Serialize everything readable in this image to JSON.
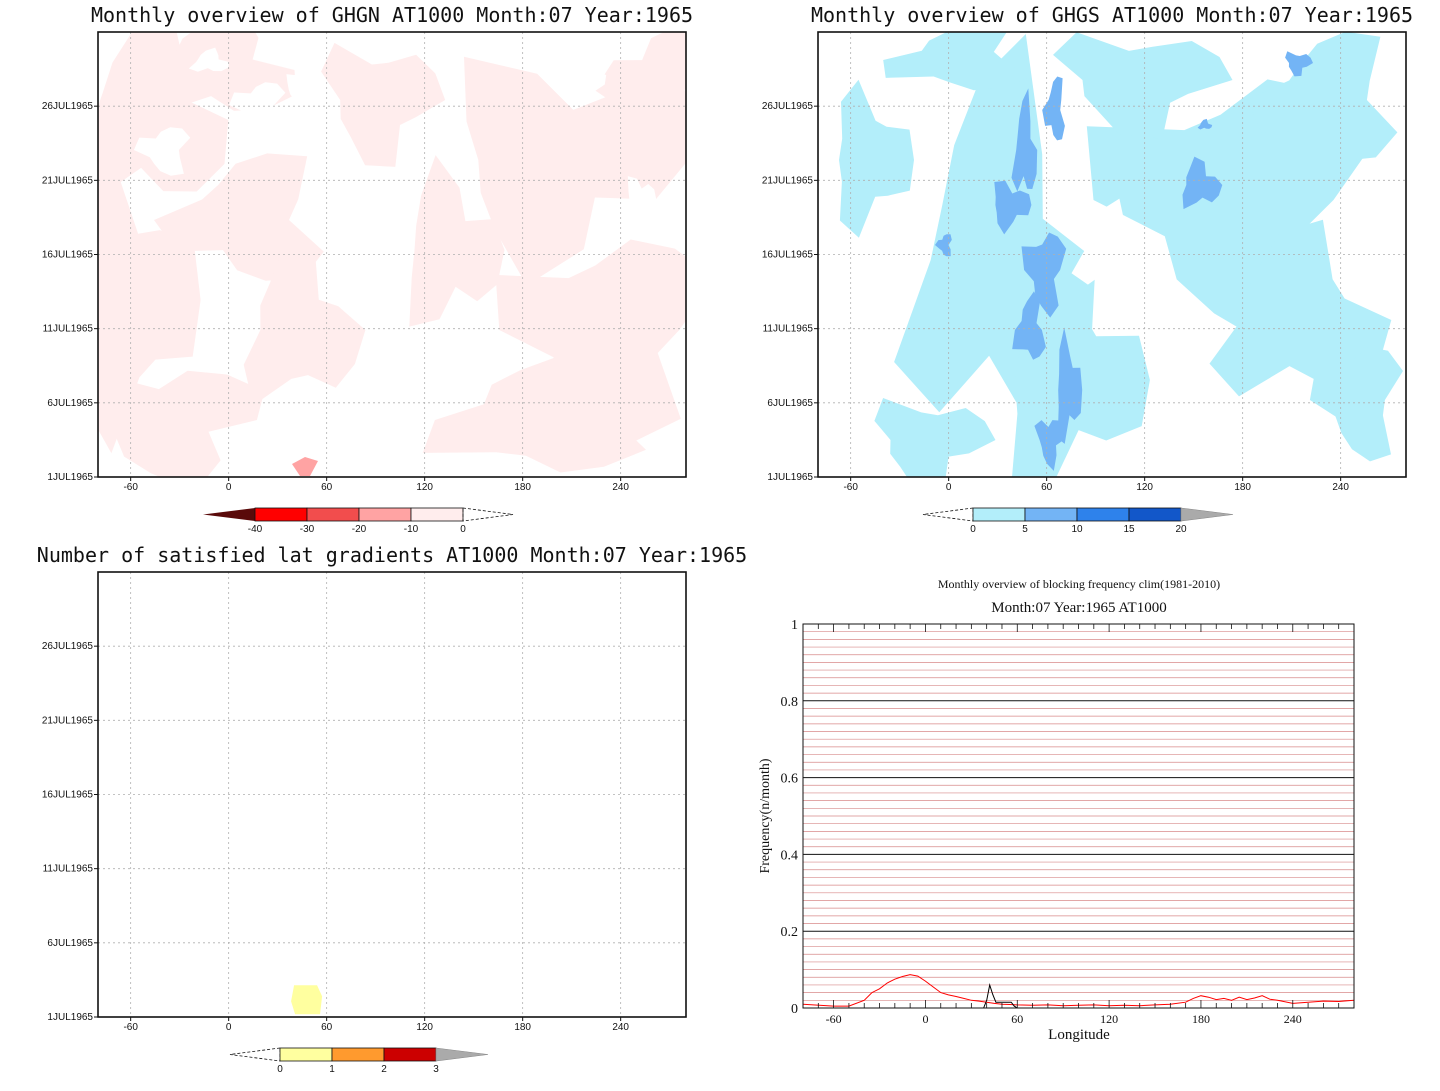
{
  "chart_data": [
    {
      "type": "heatmap",
      "title": "Monthly overview of GHGN AT1000 Month:07 Year:1965",
      "x_ticks": [
        "-60",
        "0",
        "60",
        "120",
        "180",
        "240"
      ],
      "x_tick_values": [
        -60,
        0,
        60,
        120,
        180,
        240
      ],
      "xlim": [
        -80,
        280
      ],
      "y_ticks": [
        "1JUL1965",
        "6JUL1965",
        "11JUL1965",
        "16JUL1965",
        "21JUL1965",
        "26JUL1965"
      ],
      "y_tick_values": [
        1,
        6,
        11,
        16,
        21,
        26
      ],
      "ylim": [
        1,
        31
      ],
      "grid": true,
      "colorbar": {
        "labels": [
          "-40",
          "-30",
          "-20",
          "-10",
          "0"
        ],
        "colors": [
          "#5a0a0a",
          "#ff0000",
          "#f24d4d",
          "#ffa3a3",
          "#ffeded"
        ],
        "placement": "bottom"
      },
      "shaded_color": "#ffeded"
    },
    {
      "type": "heatmap",
      "title": "Monthly overview of GHGS AT1000 Month:07 Year:1965",
      "x_ticks": [
        "-60",
        "0",
        "60",
        "120",
        "180",
        "240"
      ],
      "x_tick_values": [
        -60,
        0,
        60,
        120,
        180,
        240
      ],
      "xlim": [
        -80,
        280
      ],
      "y_ticks": [
        "1JUL1965",
        "6JUL1965",
        "11JUL1965",
        "16JUL1965",
        "21JUL1965",
        "26JUL1965"
      ],
      "y_tick_values": [
        1,
        6,
        11,
        16,
        21,
        26
      ],
      "ylim": [
        1,
        31
      ],
      "grid": true,
      "colorbar": {
        "labels": [
          "0",
          "5",
          "10",
          "15",
          "20"
        ],
        "colors": [
          "#b3eefa",
          "#73b4f5",
          "#2e82eb",
          "#1257c9",
          "#aaaaaa"
        ],
        "placement": "bottom"
      },
      "shaded_colors": [
        "#b3eefa",
        "#73b4f5"
      ]
    },
    {
      "type": "heatmap",
      "title": "Number of satisfied lat gradients AT1000 Month:07 Year:1965",
      "x_ticks": [
        "-60",
        "0",
        "60",
        "120",
        "180",
        "240"
      ],
      "x_tick_values": [
        -60,
        0,
        60,
        120,
        180,
        240
      ],
      "xlim": [
        -80,
        280
      ],
      "y_ticks": [
        "1JUL1965",
        "6JUL1965",
        "11JUL1965",
        "16JUL1965",
        "21JUL1965",
        "26JUL1965"
      ],
      "y_tick_values": [
        1,
        6,
        11,
        16,
        21,
        26
      ],
      "ylim": [
        1,
        31
      ],
      "grid": true,
      "colorbar": {
        "labels": [
          "0",
          "1",
          "2",
          "3"
        ],
        "colors": [
          "#ffff9f",
          "#ff9a2e",
          "#cc0000",
          "#aaaaaa"
        ],
        "placement": "bottom"
      },
      "cells": [
        {
          "x": 48,
          "y": 2.2,
          "value": 1
        }
      ]
    },
    {
      "type": "line",
      "title": "Monthly overview of blocking frequency clim(1981-2010)",
      "subtitle": "Month:07 Year:1965  AT1000",
      "xlabel": "Longitude",
      "ylabel": "Frequency(n/month)",
      "xlim": [
        -80,
        280
      ],
      "ylim": [
        0,
        1
      ],
      "x_ticks": [
        "-60",
        "0",
        "60",
        "120",
        "180",
        "240"
      ],
      "x_tick_values": [
        -60,
        0,
        60,
        120,
        180,
        240
      ],
      "y_ticks": [
        "0",
        "0.2",
        "0.4",
        "0.6",
        "0.8",
        "1"
      ],
      "y_tick_values": [
        0,
        0.2,
        0.4,
        0.6,
        0.8,
        1
      ],
      "grid": true,
      "series": [
        {
          "color": "#ff0000",
          "x": [
            -80,
            -60,
            -50,
            -40,
            -35,
            -30,
            -25,
            -20,
            -15,
            -10,
            -5,
            0,
            5,
            10,
            15,
            20,
            25,
            30,
            35,
            40,
            45,
            50,
            55,
            60,
            70,
            80,
            90,
            100,
            110,
            120,
            130,
            140,
            150,
            160,
            170,
            175,
            180,
            185,
            190,
            195,
            200,
            205,
            210,
            215,
            220,
            225,
            230,
            240,
            250,
            260,
            270,
            280
          ],
          "y": [
            0.01,
            0.005,
            0.005,
            0.02,
            0.04,
            0.05,
            0.065,
            0.075,
            0.082,
            0.087,
            0.083,
            0.07,
            0.055,
            0.04,
            0.034,
            0.03,
            0.025,
            0.02,
            0.018,
            0.015,
            0.012,
            0.01,
            0.009,
            0.008,
            0.007,
            0.008,
            0.006,
            0.007,
            0.008,
            0.006,
            0.007,
            0.006,
            0.008,
            0.01,
            0.015,
            0.025,
            0.032,
            0.028,
            0.022,
            0.025,
            0.02,
            0.028,
            0.022,
            0.026,
            0.032,
            0.023,
            0.02,
            0.012,
            0.015,
            0.018,
            0.017,
            0.02
          ]
        },
        {
          "color": "#000000",
          "x": [
            38,
            40,
            42,
            44,
            46,
            48,
            50,
            52,
            54,
            56,
            58,
            60
          ],
          "y": [
            0,
            0.02,
            0.06,
            0.035,
            0.015,
            0.015,
            0.015,
            0.015,
            0.015,
            0.015,
            0.005,
            0
          ]
        }
      ]
    }
  ]
}
